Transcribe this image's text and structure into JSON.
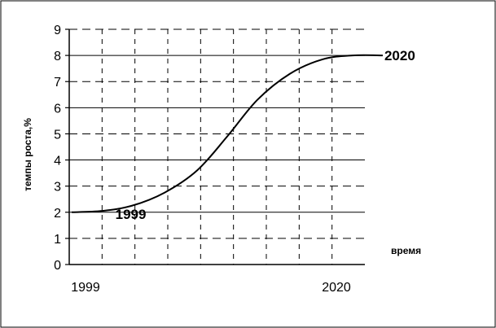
{
  "chart_data": {
    "type": "line",
    "ylabel": "темпы роста,%",
    "xlabel": "время",
    "ylim": [
      0,
      9
    ],
    "yticks": [
      0,
      1,
      2,
      3,
      4,
      5,
      6,
      7,
      8,
      9
    ],
    "xticks": [
      {
        "label": "1999",
        "x": 0
      },
      {
        "label": "2020",
        "x": 1
      }
    ],
    "xlim": [
      -0.12,
      1.12
    ],
    "grid": true,
    "series": [
      {
        "points": [
          {
            "x": -0.12,
            "y": 2.0
          },
          {
            "x": 0.0,
            "y": 2.05
          },
          {
            "x": 0.12,
            "y": 2.25
          },
          {
            "x": 0.25,
            "y": 2.75
          },
          {
            "x": 0.38,
            "y": 3.6
          },
          {
            "x": 0.5,
            "y": 4.9
          },
          {
            "x": 0.62,
            "y": 6.3
          },
          {
            "x": 0.75,
            "y": 7.3
          },
          {
            "x": 0.88,
            "y": 7.85
          },
          {
            "x": 1.0,
            "y": 8.0
          },
          {
            "x": 1.12,
            "y": 8.0
          }
        ]
      }
    ],
    "annotations": [
      {
        "text": "1999",
        "x": 0.08,
        "y": 2.0
      },
      {
        "text": "2020",
        "x": 1.12,
        "y": 8.0
      }
    ]
  }
}
